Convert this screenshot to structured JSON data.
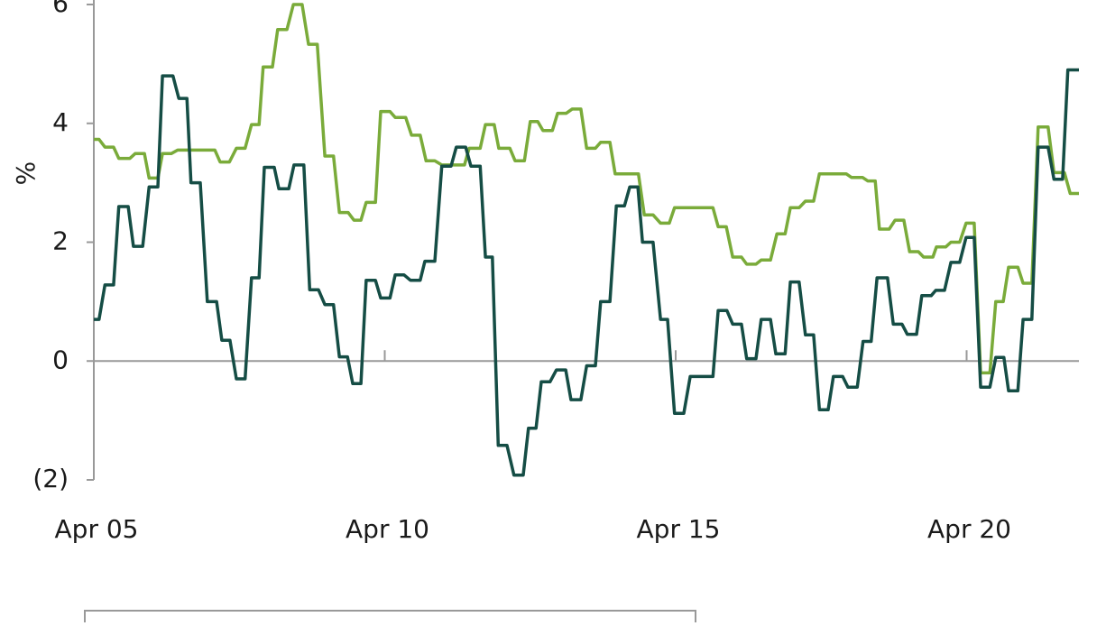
{
  "chart_data": {
    "type": "line",
    "y_label": "%",
    "xlim": [
      0,
      16.93
    ],
    "xticks": [
      {
        "value": 0,
        "label": "Apr 05"
      },
      {
        "value": 5,
        "label": "Apr 10"
      },
      {
        "value": 10,
        "label": "Apr 15"
      },
      {
        "value": 15,
        "label": "Apr 20"
      }
    ],
    "ylim": [
      -2,
      6
    ],
    "yticks": [
      {
        "value": -2,
        "label": "(2)"
      },
      0,
      2,
      4,
      6
    ],
    "series": [
      {
        "color": "#154d45",
        "x": [
          0,
          0.09,
          0.19,
          0.34,
          0.43,
          0.59,
          0.68,
          0.84,
          0.95,
          1.1,
          1.18,
          1.36,
          1.46,
          1.6,
          1.67,
          1.83,
          1.95,
          2.11,
          2.2,
          2.34,
          2.45,
          2.6,
          2.71,
          2.84,
          2.93,
          3.1,
          3.18,
          3.35,
          3.44,
          3.61,
          3.71,
          3.86,
          3.97,
          4.12,
          4.22,
          4.36,
          4.45,
          4.59,
          4.68,
          4.84,
          4.93,
          5.09,
          5.18,
          5.33,
          5.44,
          5.61,
          5.69,
          5.86,
          5.98,
          6.14,
          6.23,
          6.39,
          6.48,
          6.64,
          6.73,
          6.85,
          6.95,
          7.1,
          7.22,
          7.38,
          7.47,
          7.6,
          7.69,
          7.84,
          7.95,
          8.11,
          8.2,
          8.37,
          8.47,
          8.62,
          8.71,
          8.87,
          8.98,
          9.12,
          9.21,
          9.35,
          9.43,
          9.61,
          9.74,
          9.86,
          9.98,
          10.14,
          10.25,
          10.64,
          10.73,
          10.88,
          10.98,
          11.13,
          11.22,
          11.38,
          11.47,
          11.63,
          11.72,
          11.88,
          11.97,
          12.12,
          12.23,
          12.37,
          12.47,
          12.62,
          12.71,
          12.87,
          12.96,
          13.12,
          13.22,
          13.36,
          13.46,
          13.64,
          13.74,
          13.89,
          13.98,
          14.14,
          14.23,
          14.39,
          14.47,
          14.62,
          14.73,
          14.88,
          14.99,
          15.13,
          15.24,
          15.4,
          15.5,
          15.64,
          15.72,
          15.88,
          15.97,
          16.12,
          16.23,
          16.4,
          16.5,
          16.65,
          16.74,
          16.93
        ],
        "values": [
          0.7,
          0.7,
          1.28,
          1.28,
          2.6,
          2.6,
          1.93,
          1.93,
          2.93,
          2.93,
          4.8,
          4.8,
          4.42,
          4.42,
          3.0,
          3.0,
          1.0,
          1.0,
          0.35,
          0.35,
          -0.3,
          -0.3,
          1.4,
          1.4,
          3.26,
          3.26,
          2.9,
          2.9,
          3.3,
          3.3,
          1.2,
          1.2,
          0.95,
          0.95,
          0.07,
          0.07,
          -0.38,
          -0.38,
          1.36,
          1.36,
          1.06,
          1.06,
          1.45,
          1.45,
          1.36,
          1.36,
          1.68,
          1.68,
          3.28,
          3.28,
          3.6,
          3.6,
          3.28,
          3.28,
          1.75,
          1.75,
          -1.42,
          -1.42,
          -1.92,
          -1.92,
          -1.13,
          -1.13,
          -0.35,
          -0.35,
          -0.15,
          -0.15,
          -0.65,
          -0.65,
          -0.08,
          -0.08,
          1.0,
          1.0,
          2.61,
          2.61,
          2.93,
          2.93,
          2.0,
          2.0,
          0.7,
          0.7,
          -0.88,
          -0.88,
          -0.26,
          -0.26,
          0.85,
          0.85,
          0.62,
          0.62,
          0.04,
          0.04,
          0.7,
          0.7,
          0.12,
          0.12,
          1.33,
          1.33,
          0.44,
          0.44,
          -0.82,
          -0.82,
          -0.26,
          -0.26,
          -0.44,
          -0.44,
          0.33,
          0.33,
          1.4,
          1.4,
          0.62,
          0.62,
          0.45,
          0.45,
          1.1,
          1.1,
          1.19,
          1.19,
          1.66,
          1.66,
          2.08,
          2.08,
          -0.44,
          -0.44,
          0.06,
          0.06,
          -0.5,
          -0.5,
          0.7,
          0.7,
          3.6,
          3.6,
          3.06,
          3.06,
          4.9,
          4.9
        ]
      },
      {
        "color": "#7aab3a",
        "x": [
          0,
          0.09,
          0.19,
          0.34,
          0.43,
          0.62,
          0.71,
          0.87,
          0.95,
          1.1,
          1.18,
          1.33,
          1.44,
          2.08,
          2.17,
          2.33,
          2.45,
          2.6,
          2.71,
          2.84,
          2.91,
          3.07,
          3.16,
          3.32,
          3.43,
          3.58,
          3.69,
          3.84,
          3.97,
          4.12,
          4.22,
          4.37,
          4.47,
          4.59,
          4.68,
          4.84,
          4.93,
          5.09,
          5.18,
          5.36,
          5.46,
          5.61,
          5.71,
          5.86,
          5.98,
          6.37,
          6.45,
          6.64,
          6.73,
          6.88,
          6.96,
          7.15,
          7.24,
          7.4,
          7.5,
          7.63,
          7.72,
          7.88,
          7.97,
          8.12,
          8.22,
          8.37,
          8.47,
          8.62,
          8.71,
          8.87,
          8.96,
          9.36,
          9.46,
          9.61,
          9.74,
          9.89,
          9.98,
          10.64,
          10.73,
          10.87,
          10.98,
          11.13,
          11.22,
          11.38,
          11.47,
          11.63,
          11.74,
          11.88,
          11.97,
          12.12,
          12.23,
          12.37,
          12.47,
          12.93,
          13.02,
          13.21,
          13.3,
          13.43,
          13.5,
          13.67,
          13.77,
          13.92,
          14.02,
          14.17,
          14.26,
          14.42,
          14.48,
          14.64,
          14.73,
          14.88,
          14.99,
          15.13,
          15.24,
          15.4,
          15.5,
          15.63,
          15.72,
          15.88,
          15.97,
          16.12,
          16.23,
          16.4,
          16.5,
          16.68,
          16.78,
          16.93
        ],
        "values": [
          3.73,
          3.73,
          3.6,
          3.6,
          3.41,
          3.41,
          3.49,
          3.49,
          3.08,
          3.08,
          3.49,
          3.49,
          3.55,
          3.55,
          3.35,
          3.35,
          3.58,
          3.58,
          3.98,
          3.98,
          4.95,
          4.95,
          5.58,
          5.58,
          6.0,
          6.0,
          5.33,
          5.33,
          3.45,
          3.45,
          2.5,
          2.5,
          2.37,
          2.37,
          2.67,
          2.67,
          4.2,
          4.2,
          4.1,
          4.1,
          3.8,
          3.8,
          3.37,
          3.37,
          3.3,
          3.3,
          3.58,
          3.58,
          3.98,
          3.98,
          3.58,
          3.58,
          3.37,
          3.37,
          4.03,
          4.03,
          3.88,
          3.88,
          4.17,
          4.17,
          4.24,
          4.24,
          3.58,
          3.58,
          3.68,
          3.68,
          3.15,
          3.15,
          2.46,
          2.46,
          2.32,
          2.32,
          2.58,
          2.58,
          2.26,
          2.26,
          1.75,
          1.75,
          1.63,
          1.63,
          1.7,
          1.7,
          2.14,
          2.14,
          2.58,
          2.58,
          2.69,
          2.69,
          3.15,
          3.15,
          3.09,
          3.09,
          3.03,
          3.03,
          2.22,
          2.22,
          2.37,
          2.37,
          1.84,
          1.84,
          1.75,
          1.75,
          1.92,
          1.92,
          2.0,
          2.0,
          2.32,
          2.32,
          -0.2,
          -0.2,
          1.0,
          1.0,
          1.58,
          1.58,
          1.31,
          1.31,
          3.94,
          3.94,
          3.17,
          3.17,
          2.82,
          2.82
        ]
      }
    ]
  }
}
